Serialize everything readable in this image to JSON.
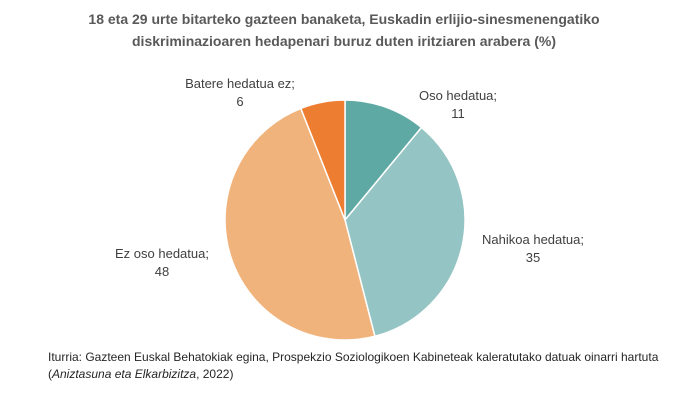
{
  "chart_data": {
    "type": "pie",
    "title": [
      "18 eta 29 urte bitarteko gazteen banaketa, Euskadin erlijio-sinesmenengatiko",
      "diskriminazioaren hedapenari buruz duten iritziaren arabera (%)"
    ],
    "categories": [
      "Oso hedatua;",
      "Nahikoa hedatua;",
      "Ez oso hedatua;",
      "Batere hedatua ez;"
    ],
    "values": [
      11,
      35,
      48,
      6
    ],
    "colors": [
      "#5ea9a4",
      "#94c4c3",
      "#f1b37c",
      "#ed7d31"
    ],
    "source": [
      "Iturria: Gazteen Euskal Behatokiak egina, Prospekzio Soziologikoen Kabineteak kaleratutako datuak oinarri hartuta (",
      "Aniztasuna eta Elkarbizitza",
      ", 2022)"
    ]
  }
}
